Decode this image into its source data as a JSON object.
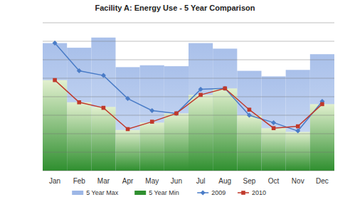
{
  "chart_data": {
    "type": "bar",
    "title": "Facility A: Energy Use - 5 Year Comparison",
    "categories": [
      "Jan",
      "Feb",
      "Mar",
      "Apr",
      "May",
      "Jun",
      "Jul",
      "Aug",
      "Sep",
      "Oct",
      "Nov",
      "Dec"
    ],
    "series": [
      {
        "name": "5 Year Max",
        "type": "bar",
        "color": "#9db7e6",
        "values": [
          6.9,
          6.65,
          7.2,
          5.6,
          5.7,
          5.65,
          6.9,
          6.6,
          5.4,
          5.1,
          5.45,
          6.3
        ]
      },
      {
        "name": "5 Year Min",
        "type": "bar",
        "color": "#2f8f2f",
        "values": [
          4.9,
          3.7,
          3.45,
          2.2,
          2.6,
          3.1,
          4.1,
          4.45,
          3.0,
          2.3,
          2.1,
          3.6
        ]
      },
      {
        "name": "2009",
        "type": "line",
        "color": "#4a7cc7",
        "marker": "diamond",
        "values": [
          6.9,
          5.4,
          5.15,
          3.9,
          3.25,
          3.1,
          4.4,
          4.45,
          3.0,
          2.6,
          2.15,
          3.75
        ]
      },
      {
        "name": "2010",
        "type": "line",
        "color": "#c0392b",
        "marker": "square",
        "values": [
          4.9,
          3.7,
          3.4,
          2.25,
          2.65,
          3.1,
          4.1,
          4.45,
          3.3,
          2.3,
          2.4,
          3.6
        ]
      }
    ],
    "ylim": [
      0,
      8
    ],
    "yticks": [
      0,
      1,
      2,
      3,
      4,
      5,
      6,
      7,
      8
    ],
    "grid": true,
    "tick_labels": "x",
    "legend": "bottom"
  }
}
